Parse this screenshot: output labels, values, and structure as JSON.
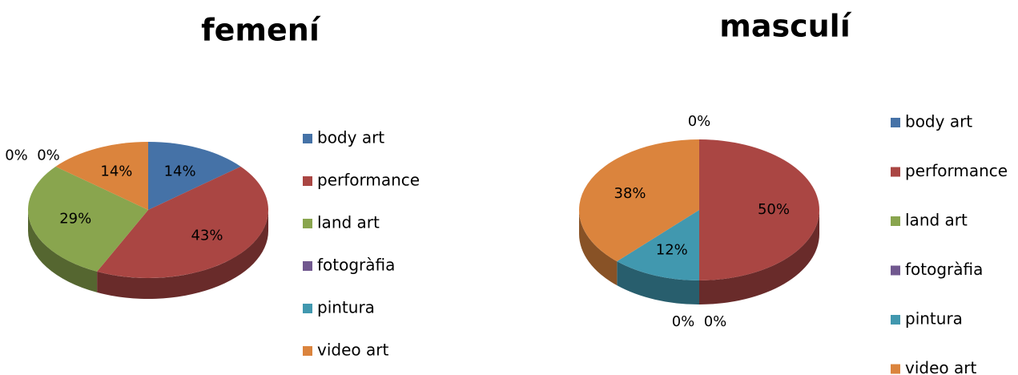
{
  "chart_data": [
    {
      "type": "pie",
      "title": "femení",
      "categories": [
        "body art",
        "performance",
        "land art",
        "fotogràfia",
        "pintura",
        "video art"
      ],
      "values": [
        14,
        43,
        29,
        0,
        0,
        14
      ],
      "value_labels": [
        "14%",
        "43%",
        "29%",
        "0%",
        "0%",
        "14%"
      ],
      "colors": [
        "#4572A7",
        "#AA4643",
        "#89A54E",
        "#71588F",
        "#4198AF",
        "#DB843D"
      ],
      "legend": "right"
    },
    {
      "type": "pie",
      "title": "masculí",
      "categories": [
        "body art",
        "performance",
        "land art",
        "fotogràfia",
        "pintura",
        "video art"
      ],
      "values": [
        0,
        50,
        0,
        0,
        12,
        38
      ],
      "value_labels": [
        "0%",
        "50%",
        "0%",
        "0%",
        "12%",
        "38%"
      ],
      "colors": [
        "#4572A7",
        "#AA4643",
        "#89A54E",
        "#71588F",
        "#4198AF",
        "#DB843D"
      ],
      "legend": "right"
    }
  ]
}
